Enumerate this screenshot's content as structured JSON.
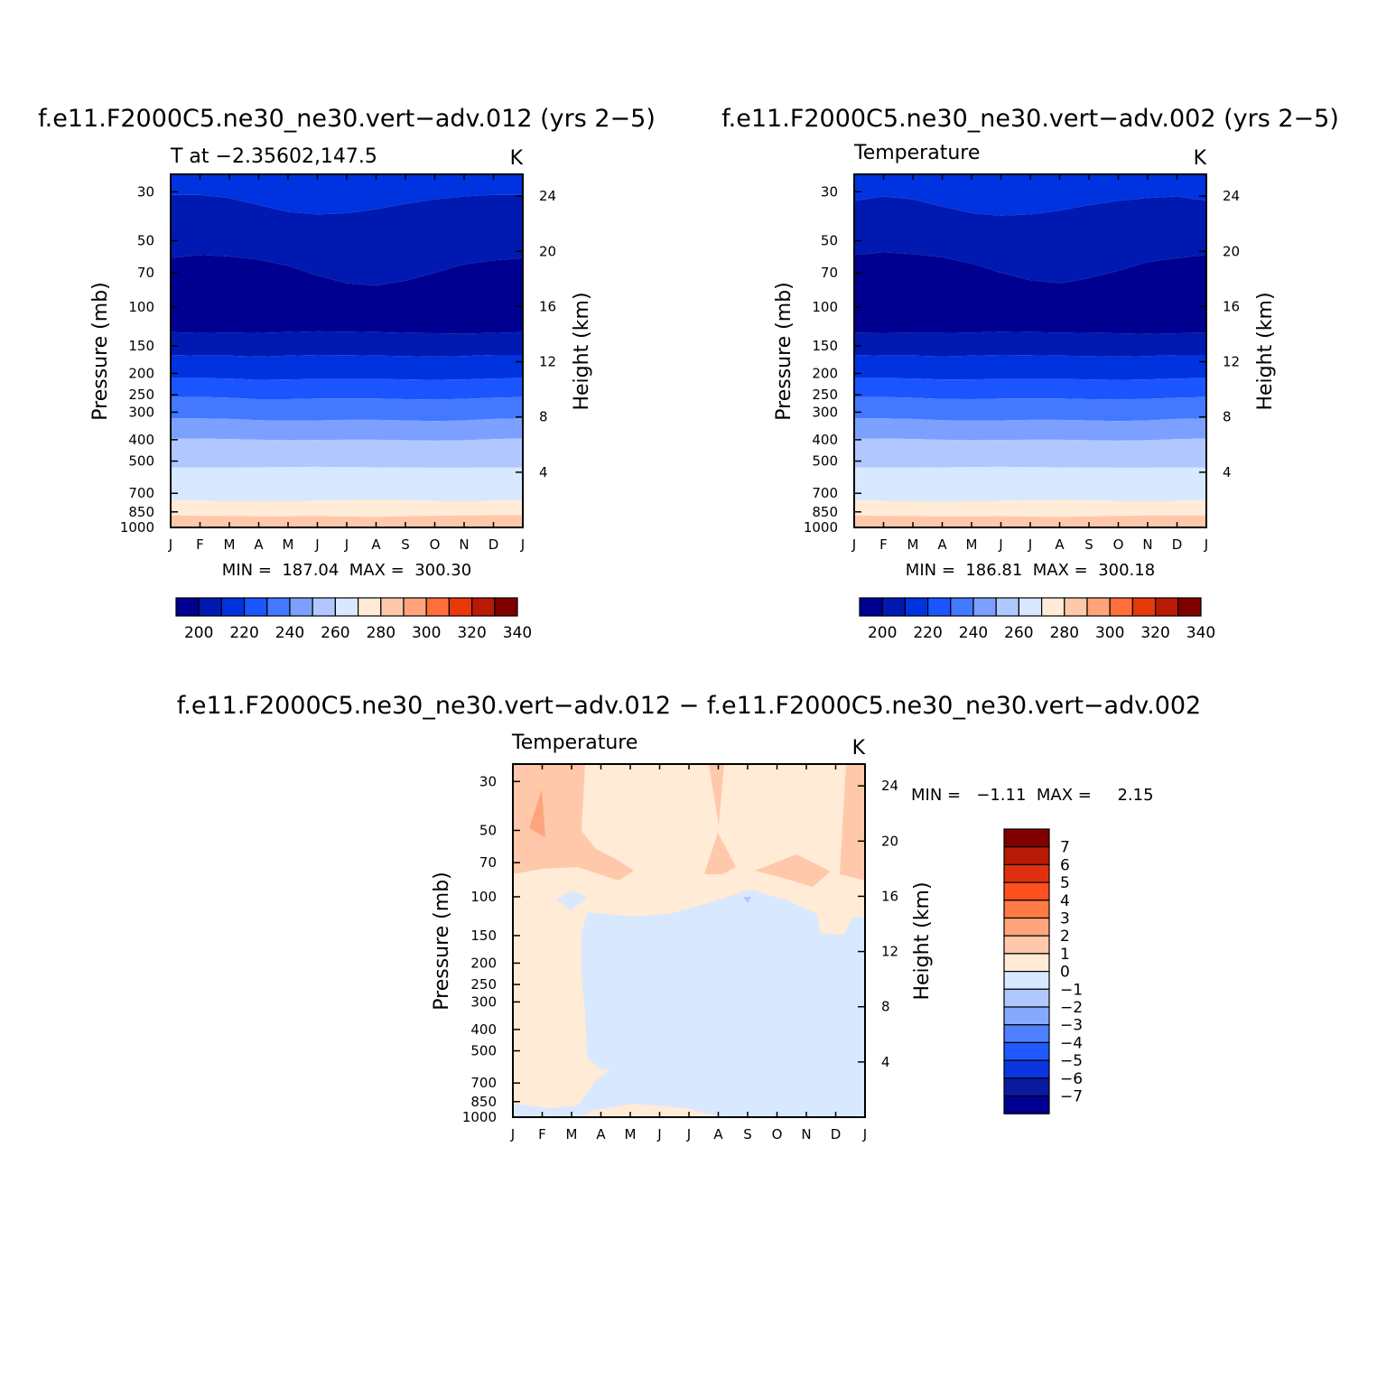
{
  "chart_data": [
    {
      "type": "heatmap",
      "title": "f.e11.F2000C5.ne30_ne30.vert−adv.012 (yrs 2−5)",
      "left_label": "T at −2.35602,147.5",
      "units": "K",
      "ylabel": "Pressure (mb)",
      "ylabel_right": "Height (km)",
      "x_ticks": [
        "J",
        "F",
        "M",
        "A",
        "M",
        "J",
        "J",
        "A",
        "S",
        "O",
        "N",
        "D",
        "J"
      ],
      "y_ticks": [
        "30",
        "50",
        "70",
        "100",
        "150",
        "200",
        "250",
        "300",
        "400",
        "500",
        "700",
        "850",
        "1000"
      ],
      "y_ticks_right": [
        "24",
        "20",
        "16",
        "12",
        "8",
        "4"
      ],
      "min_max": "MIN =  187.04  MAX =  300.30",
      "colorbar_labels": [
        "200",
        "220",
        "240",
        "260",
        "280",
        "300",
        "320",
        "340"
      ],
      "boundaries": {
        "b210": [
          31.0,
          31.0,
          32.0,
          34.5,
          37.0,
          38.0,
          37.5,
          36.0,
          34.0,
          32.5,
          31.5,
          31.0,
          31.0
        ],
        "b200": [
          60.0,
          58.0,
          59.0,
          61.0,
          65.0,
          72.0,
          78.0,
          80.0,
          76.0,
          70.0,
          64.0,
          61.5,
          60.0
        ],
        "b210b": [
          130.0,
          131.0,
          130.5,
          131.0,
          130.0,
          129.0,
          129.5,
          130.0,
          131.0,
          131.5,
          132.0,
          131.0,
          130.0
        ],
        "b220": [
          165.0,
          166.0,
          166.0,
          168.0,
          166.0,
          165.0,
          165.5,
          166.0,
          167.0,
          168.0,
          167.0,
          165.0,
          165.0
        ],
        "b230": [
          210.0,
          210.0,
          211.0,
          214.0,
          213.0,
          212.0,
          212.0,
          212.0,
          213.0,
          214.0,
          213.0,
          211.0,
          210.0
        ],
        "b240": [
          256.0,
          256.0,
          258.0,
          262.0,
          262.0,
          260.0,
          260.0,
          260.0,
          262.0,
          263.0,
          261.0,
          258.0,
          256.0
        ],
        "b250": [
          320.0,
          320.0,
          322.0,
          326.0,
          328.0,
          327.0,
          325.0,
          325.0,
          327.0,
          329.0,
          327.0,
          322.0,
          320.0
        ],
        "b260": [
          395.0,
          395.0,
          397.0,
          400.0,
          402.0,
          401.0,
          400.0,
          400.0,
          402.0,
          404.0,
          402.0,
          398.0,
          395.0
        ],
        "b270": [
          535.0,
          535.0,
          535.0,
          534.0,
          532.0,
          531.0,
          533.0,
          534.0,
          535.0,
          536.0,
          536.0,
          535.0,
          535.0
        ],
        "b280": [
          750.0,
          755.0,
          758.0,
          760.0,
          758.0,
          755.0,
          752.0,
          750.0,
          752.0,
          756.0,
          758.0,
          755.0,
          750.0
        ],
        "b290": [
          880.0,
          885.0,
          888.0,
          890.0,
          890.0,
          888.0,
          892.0,
          895.0,
          890.0,
          885.0,
          882.0,
          880.0,
          880.0
        ],
        "b300": [
          990.0,
          990.0,
          990.0,
          990.0,
          990.0,
          990.0,
          990.0,
          990.0,
          990.0,
          990.0,
          990.0,
          990.0,
          990.0
        ]
      }
    },
    {
      "type": "heatmap",
      "title": "f.e11.F2000C5.ne30_ne30.vert−adv.002 (yrs 2−5)",
      "left_label": "Temperature",
      "units": "K",
      "ylabel": "Pressure (mb)",
      "ylabel_right": "Height (km)",
      "x_ticks": [
        "J",
        "F",
        "M",
        "A",
        "M",
        "J",
        "J",
        "A",
        "S",
        "O",
        "N",
        "D",
        "J"
      ],
      "y_ticks": [
        "30",
        "50",
        "70",
        "100",
        "150",
        "200",
        "250",
        "300",
        "400",
        "500",
        "700",
        "850",
        "1000"
      ],
      "y_ticks_right": [
        "24",
        "20",
        "16",
        "12",
        "8",
        "4"
      ],
      "min_max": "MIN =  186.81  MAX =  300.18",
      "colorbar_labels": [
        "200",
        "220",
        "240",
        "260",
        "280",
        "300",
        "320",
        "340"
      ],
      "boundaries": {
        "b210": [
          33.0,
          31.5,
          32.5,
          35.0,
          37.5,
          38.5,
          38.0,
          36.5,
          34.5,
          33.0,
          32.0,
          31.5,
          33.0
        ],
        "b200": [
          58.0,
          56.5,
          57.5,
          59.5,
          63.5,
          70.0,
          75.5,
          78.0,
          74.0,
          68.5,
          62.5,
          60.0,
          58.0
        ],
        "b210b": [
          131.0,
          131.5,
          131.0,
          131.0,
          130.5,
          129.5,
          130.0,
          130.5,
          131.0,
          131.5,
          132.5,
          131.5,
          131.0
        ],
        "b220": [
          165.0,
          166.0,
          166.0,
          167.5,
          166.0,
          165.0,
          165.5,
          166.0,
          167.0,
          168.0,
          167.0,
          165.0,
          165.0
        ],
        "b230": [
          210.0,
          210.0,
          211.0,
          213.5,
          213.0,
          212.0,
          212.0,
          212.0,
          213.0,
          214.0,
          213.0,
          211.0,
          210.0
        ],
        "b240": [
          256.0,
          256.0,
          258.0,
          261.5,
          262.0,
          260.0,
          260.0,
          260.0,
          262.0,
          263.0,
          261.0,
          258.0,
          256.0
        ],
        "b250": [
          320.0,
          320.0,
          322.0,
          326.0,
          328.0,
          327.0,
          325.0,
          325.0,
          327.0,
          329.0,
          327.0,
          322.0,
          320.0
        ],
        "b260": [
          395.0,
          395.0,
          397.0,
          400.0,
          402.0,
          401.0,
          400.0,
          400.0,
          402.0,
          404.0,
          402.0,
          398.0,
          395.0
        ],
        "b270": [
          535.0,
          535.0,
          535.0,
          534.0,
          532.0,
          531.0,
          533.0,
          534.0,
          535.0,
          536.0,
          536.0,
          535.0,
          535.0
        ],
        "b280": [
          752.0,
          756.0,
          759.0,
          761.0,
          759.0,
          756.0,
          753.0,
          751.0,
          753.0,
          757.0,
          759.0,
          756.0,
          752.0
        ],
        "b290": [
          882.0,
          886.0,
          889.0,
          891.0,
          891.0,
          889.0,
          893.0,
          896.0,
          891.0,
          886.0,
          883.0,
          881.0,
          882.0
        ],
        "b300": [
          990.0,
          990.0,
          990.0,
          990.0,
          990.0,
          990.0,
          990.0,
          990.0,
          990.0,
          990.0,
          990.0,
          990.0,
          990.0
        ]
      }
    },
    {
      "type": "heatmap",
      "title": "f.e11.F2000C5.ne30_ne30.vert−adv.012 − f.e11.F2000C5.ne30_ne30.vert−adv.002",
      "left_label": "Temperature",
      "units": "K",
      "ylabel": "Pressure (mb)",
      "ylabel_right": "Height (km)",
      "x_ticks": [
        "J",
        "F",
        "M",
        "A",
        "M",
        "J",
        "J",
        "A",
        "S",
        "O",
        "N",
        "D",
        "J"
      ],
      "y_ticks": [
        "30",
        "50",
        "70",
        "100",
        "150",
        "200",
        "250",
        "300",
        "400",
        "500",
        "700",
        "850",
        "1000"
      ],
      "y_ticks_right": [
        "24",
        "20",
        "16",
        "12",
        "8",
        "4"
      ],
      "min_max": "MIN =   −1.11  MAX =     2.15",
      "colorbar_labels": [
        "7",
        "6",
        "5",
        "4",
        "3",
        "2",
        "1",
        "0",
        "−1",
        "−2",
        "−3",
        "−4",
        "−5",
        "−6",
        "−7"
      ]
    }
  ],
  "colors": {
    "temperature_levels": [
      "#000090",
      "#0019b0",
      "#0033e0",
      "#1a55ff",
      "#4478ff",
      "#7ca0ff",
      "#b0c8ff",
      "#d8e8ff",
      "#ffebd6",
      "#ffc8aa",
      "#ffa37a",
      "#ff6e3c",
      "#e8380a",
      "#b81a06",
      "#800000"
    ],
    "difference_levels": [
      "#800000",
      "#b81a06",
      "#e03010",
      "#ff5020",
      "#ff7a45",
      "#ffa47c",
      "#ffc8aa",
      "#ffebd6",
      "#d8e8ff",
      "#b0c8ff",
      "#86a8ff",
      "#4e80ff",
      "#1e5aff",
      "#0a34e0",
      "#0a1aa0",
      "#000090"
    ]
  }
}
